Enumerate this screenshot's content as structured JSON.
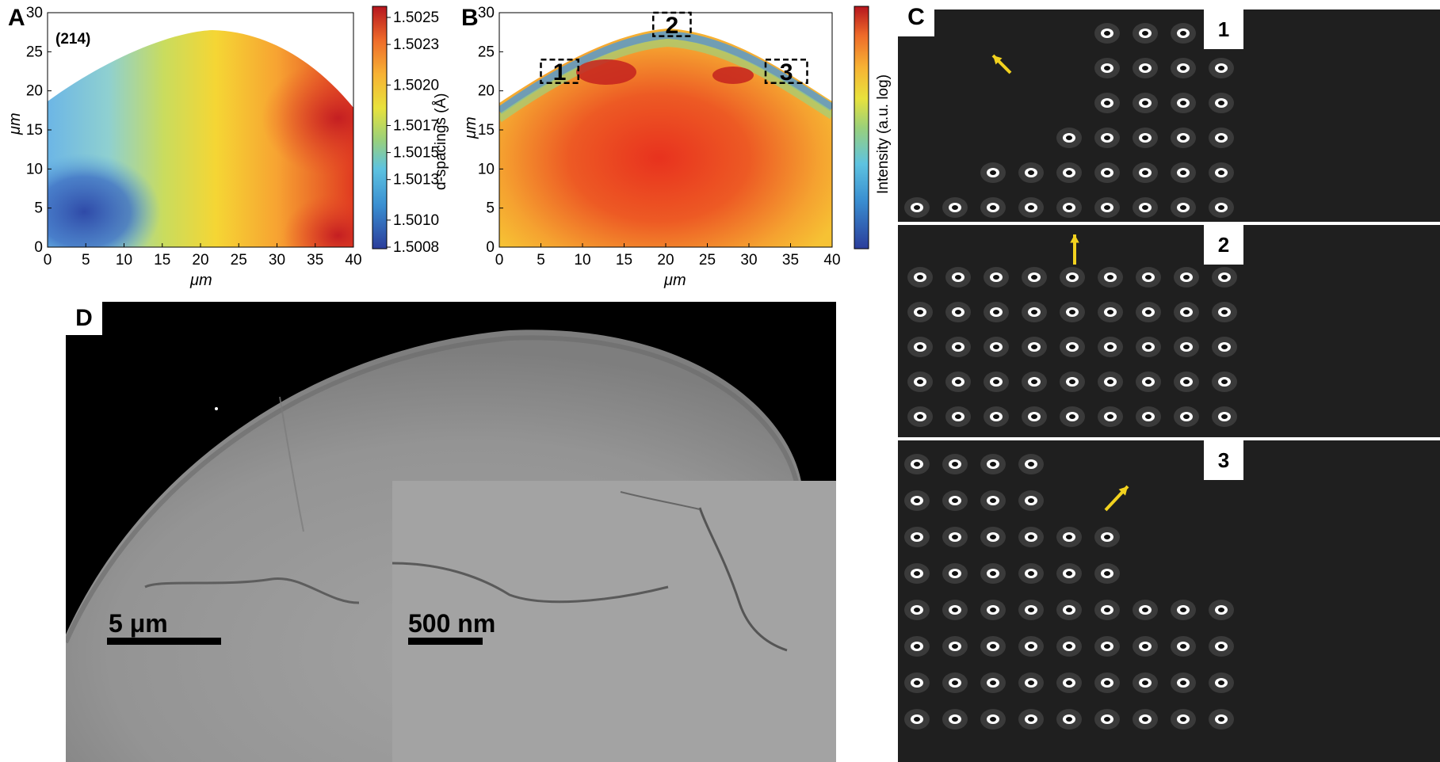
{
  "panels": {
    "A": {
      "letter": "A",
      "annotation": "(214)",
      "xlabel": "μm",
      "ylabel": "μm",
      "colorbar_label": "d-spacings (Å)",
      "colorbar_ticks": [
        "1.5025",
        "1.5023",
        "1.5020",
        "1.5017",
        "1.5015",
        "1.5013",
        "1.5010",
        "1.5008"
      ]
    },
    "B": {
      "letter": "B",
      "xlabel": "μm",
      "ylabel": "μm",
      "colorbar_label": "Intensity (a.u. log)",
      "boxes": [
        "1",
        "2",
        "3"
      ]
    },
    "C": {
      "letter": "C",
      "subpanels": [
        "1",
        "2",
        "3"
      ]
    },
    "D": {
      "letter": "D",
      "scalebar_main": "5 μm",
      "scalebar_inset": "500 nm"
    }
  },
  "chart_data": [
    {
      "type": "heatmap",
      "panel": "A",
      "annotation": "(214)",
      "xlabel": "μm",
      "ylabel": "μm",
      "x_ticks": [
        0,
        5,
        10,
        15,
        20,
        25,
        30,
        35,
        40
      ],
      "y_ticks": [
        0,
        5,
        10,
        15,
        20,
        25,
        30
      ],
      "xlim": [
        0,
        40
      ],
      "ylim": [
        0,
        30
      ],
      "colorbar": {
        "label": "d-spacings (Å)",
        "min": 1.5008,
        "max": 1.5025,
        "ticks": [
          1.5025,
          1.5023,
          1.502,
          1.5017,
          1.5015,
          1.5013,
          1.501,
          1.5008
        ],
        "colormap": "jet"
      }
    },
    {
      "type": "heatmap",
      "panel": "B",
      "xlabel": "μm",
      "ylabel": "μm",
      "x_ticks": [
        0,
        5,
        10,
        15,
        20,
        25,
        30,
        35,
        40
      ],
      "y_ticks": [
        0,
        5,
        10,
        15,
        20,
        25,
        30
      ],
      "xlim": [
        0,
        40
      ],
      "ylim": [
        0,
        30
      ],
      "colorbar": {
        "label": "Intensity (a.u. log)",
        "colormap": "jet"
      },
      "regions": [
        {
          "label": "1",
          "x": [
            5,
            9.5
          ],
          "y": [
            21,
            24
          ]
        },
        {
          "label": "2",
          "x": [
            18.5,
            23
          ],
          "y": [
            27,
            30
          ]
        },
        {
          "label": "3",
          "x": [
            32,
            37
          ],
          "y": [
            21,
            24
          ]
        }
      ]
    }
  ]
}
